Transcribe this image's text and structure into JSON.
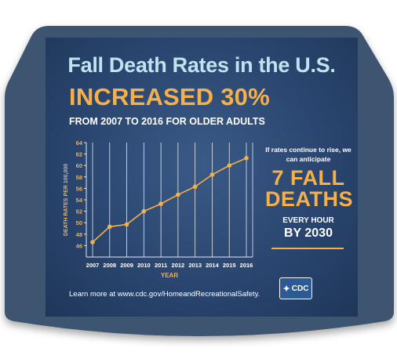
{
  "headline": {
    "title": "Fall Death Rates in the U.S.",
    "highlight": "INCREASED 30%",
    "subtitle": "FROM 2007 TO 2016 FOR OLDER ADULTS"
  },
  "sidebar": {
    "intro": "If rates continue to rise, we can anticipate",
    "big_number": "7 FALL DEATHS",
    "rate": "EVERY HOUR",
    "by_year": "BY 2030"
  },
  "footer": {
    "learn_more": "Learn more at www.cdc.gov/HomeandRecreationalSafety."
  },
  "logo": {
    "text": "CDC",
    "icon": "hhs-eagle-icon"
  },
  "colors": {
    "background": "#2a4670",
    "title": "#bfe3ef",
    "accent": "#f5b04a",
    "text": "#ffffff",
    "grid": "#e8e8e8"
  },
  "chart_data": {
    "type": "line",
    "x": [
      "2007",
      "2008",
      "2009",
      "2010",
      "2011",
      "2012",
      "2013",
      "2014",
      "2015",
      "2016"
    ],
    "values": [
      46.6,
      49.3,
      49.7,
      52.0,
      53.3,
      54.9,
      56.3,
      58.4,
      60.0,
      61.3
    ],
    "xlabel": "YEAR",
    "ylabel": "DEATH RATES PER 100,000",
    "ylim": [
      44,
      64
    ],
    "yticks": [
      "46",
      "48",
      "50",
      "52",
      "54",
      "56",
      "58",
      "60",
      "62",
      "64"
    ],
    "grid": "vertical"
  }
}
